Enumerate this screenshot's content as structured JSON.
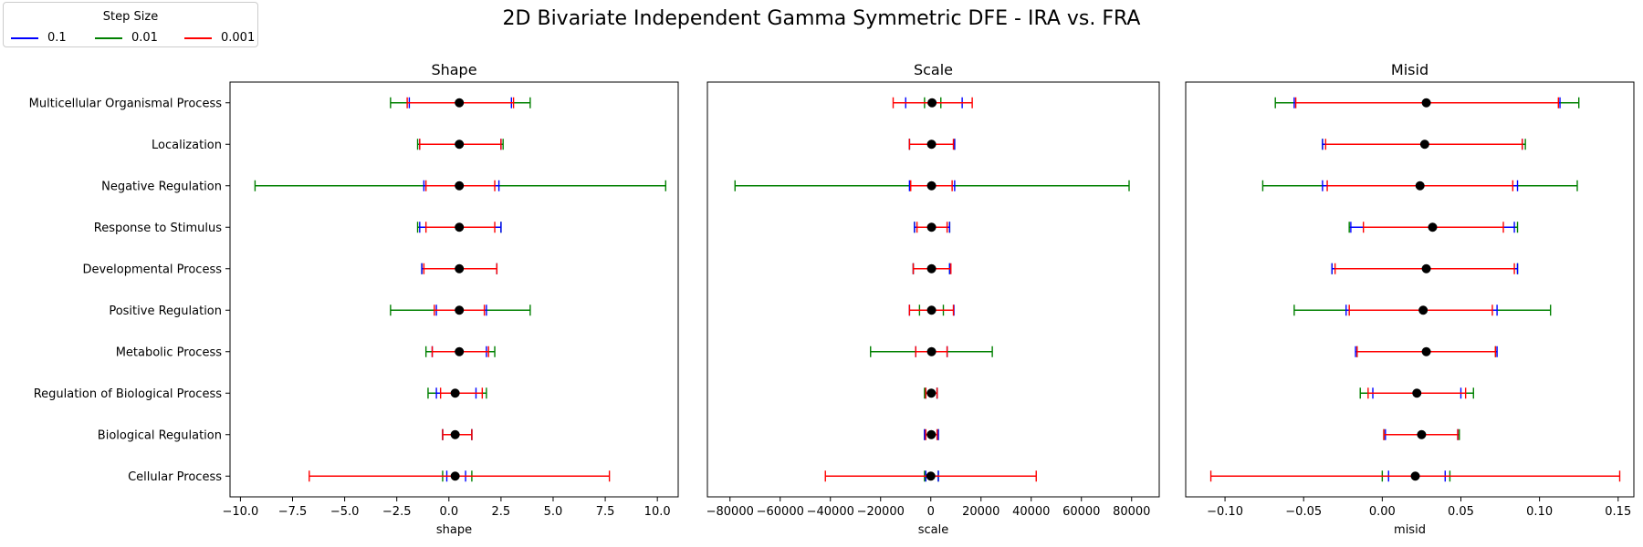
{
  "figure": {
    "suptitle": "2D Bivariate Independent Gamma Symmetric DFE - IRA vs. FRA"
  },
  "legend": {
    "title": "Step Size",
    "entries": [
      {
        "label": "0.1",
        "color": "#0000ff"
      },
      {
        "label": "0.01",
        "color": "#008000"
      },
      {
        "label": "0.001",
        "color": "#ff0000"
      }
    ]
  },
  "chart_data": [
    {
      "type": "errorbar",
      "title": "Shape",
      "xlabel": "shape",
      "xlim": [
        -10.5,
        11.0
      ],
      "xticks": [
        -10.0,
        -7.5,
        -5.0,
        -2.5,
        0.0,
        2.5,
        5.0,
        7.5,
        10.0
      ],
      "xtick_labels": [
        "−10.0",
        "−7.5",
        "−5.0",
        "−2.5",
        "0.0",
        "2.5",
        "5.0",
        "7.5",
        "10.0"
      ],
      "categories": [
        "Multicellular Organismal Process",
        "Localization",
        "Negative Regulation",
        "Response to Stimulus",
        "Developmental Process",
        "Positive Regulation",
        "Metabolic Process",
        "Regulation of Biological Process",
        "Biological Regulation",
        "Cellular Process"
      ],
      "points": [
        0.5,
        0.5,
        0.5,
        0.5,
        0.5,
        0.5,
        0.5,
        0.3,
        0.3,
        0.3
      ],
      "series": [
        {
          "name": "0.1",
          "color": "#0000ff",
          "intervals": [
            [
              -1.9,
              3.0
            ],
            [
              -1.4,
              2.5
            ],
            [
              -1.2,
              2.4
            ],
            [
              -1.4,
              2.5
            ],
            [
              -1.3,
              2.3
            ],
            [
              -0.6,
              1.8
            ],
            [
              -0.8,
              1.8
            ],
            [
              -0.6,
              1.3
            ],
            [
              -0.3,
              1.1
            ],
            [
              -0.1,
              0.8
            ]
          ]
        },
        {
          "name": "0.01",
          "color": "#008000",
          "intervals": [
            [
              -2.8,
              3.9
            ],
            [
              -1.5,
              2.6
            ],
            [
              -9.3,
              10.4
            ],
            [
              -1.5,
              2.5
            ],
            [
              -1.3,
              2.3
            ],
            [
              -2.8,
              3.9
            ],
            [
              -1.1,
              2.2
            ],
            [
              -1.0,
              1.8
            ],
            [
              -0.3,
              1.1
            ],
            [
              -0.3,
              1.1
            ]
          ]
        },
        {
          "name": "0.001",
          "color": "#ff0000",
          "intervals": [
            [
              -2.0,
              3.1
            ],
            [
              -1.4,
              2.5
            ],
            [
              -1.1,
              2.2
            ],
            [
              -1.1,
              2.2
            ],
            [
              -1.2,
              2.3
            ],
            [
              -0.7,
              1.7
            ],
            [
              -0.8,
              1.9
            ],
            [
              -0.4,
              1.6
            ],
            [
              -0.3,
              1.1
            ],
            [
              -6.7,
              7.7
            ]
          ]
        }
      ]
    },
    {
      "type": "errorbar",
      "title": "Scale",
      "xlabel": "scale",
      "xlim": [
        -89000,
        91000
      ],
      "xticks": [
        -80000,
        -60000,
        -40000,
        -20000,
        0,
        20000,
        40000,
        60000,
        80000
      ],
      "xtick_labels": [
        "−80000",
        "−60000",
        "−40000",
        "−20000",
        "0",
        "20000",
        "40000",
        "60000",
        "80000"
      ],
      "categories": [
        "Multicellular Organismal Process",
        "Localization",
        "Negative Regulation",
        "Response to Stimulus",
        "Developmental Process",
        "Positive Regulation",
        "Metabolic Process",
        "Regulation of Biological Process",
        "Biological Regulation",
        "Cellular Process"
      ],
      "points": [
        500,
        300,
        300,
        300,
        300,
        300,
        300,
        200,
        200,
        0
      ],
      "series": [
        {
          "name": "0.1",
          "color": "#0000ff",
          "intervals": [
            [
              -10000,
              12500
            ],
            [
              -8500,
              9500
            ],
            [
              -8500,
              9500
            ],
            [
              -6500,
              7500
            ],
            [
              -7000,
              7500
            ],
            [
              -8500,
              9200
            ],
            [
              -6000,
              6500
            ],
            [
              -2000,
              2500
            ],
            [
              -2500,
              3000
            ],
            [
              -2000,
              3000
            ]
          ]
        },
        {
          "name": "0.01",
          "color": "#008000",
          "intervals": [
            [
              -2500,
              4000
            ],
            [
              -8500,
              9500
            ],
            [
              -78000,
              79000
            ],
            [
              -6500,
              7500
            ],
            [
              -7000,
              7500
            ],
            [
              -4500,
              5000
            ],
            [
              -24000,
              24500
            ],
            [
              -2500,
              2500
            ],
            [
              -2500,
              3000
            ],
            [
              -2500,
              3000
            ]
          ]
        },
        {
          "name": "0.001",
          "color": "#ff0000",
          "intervals": [
            [
              -15000,
              16500
            ],
            [
              -8500,
              9000
            ],
            [
              -8000,
              8500
            ],
            [
              -5500,
              6500
            ],
            [
              -7000,
              8000
            ],
            [
              -8500,
              9000
            ],
            [
              -6000,
              6500
            ],
            [
              -2000,
              2500
            ],
            [
              -2000,
              2500
            ],
            [
              -42000,
              42000
            ]
          ]
        }
      ]
    },
    {
      "type": "errorbar",
      "title": "Misid",
      "xlabel": "misid",
      "xlim": [
        -0.125,
        0.16
      ],
      "xticks": [
        -0.1,
        -0.05,
        0.0,
        0.05,
        0.1,
        0.15
      ],
      "xtick_labels": [
        "−0.10",
        "−0.05",
        "0.00",
        "0.05",
        "0.10",
        "0.15"
      ],
      "categories": [
        "Multicellular Organismal Process",
        "Localization",
        "Negative Regulation",
        "Response to Stimulus",
        "Developmental Process",
        "Positive Regulation",
        "Metabolic Process",
        "Regulation of Biological Process",
        "Biological Regulation",
        "Cellular Process"
      ],
      "points": [
        0.028,
        0.027,
        0.024,
        0.032,
        0.028,
        0.026,
        0.028,
        0.022,
        0.025,
        0.021
      ],
      "series": [
        {
          "name": "0.1",
          "color": "#0000ff",
          "intervals": [
            [
              -0.056,
              0.113
            ],
            [
              -0.038,
              0.089
            ],
            [
              -0.038,
              0.086
            ],
            [
              -0.02,
              0.084
            ],
            [
              -0.032,
              0.086
            ],
            [
              -0.023,
              0.073
            ],
            [
              -0.017,
              0.073
            ],
            [
              -0.006,
              0.05
            ],
            [
              0.002,
              0.048
            ],
            [
              0.004,
              0.04
            ]
          ]
        },
        {
          "name": "0.01",
          "color": "#008000",
          "intervals": [
            [
              -0.068,
              0.125
            ],
            [
              -0.038,
              0.091
            ],
            [
              -0.076,
              0.124
            ],
            [
              -0.021,
              0.086
            ],
            [
              -0.032,
              0.086
            ],
            [
              -0.056,
              0.107
            ],
            [
              -0.016,
              0.072
            ],
            [
              -0.014,
              0.058
            ],
            [
              0.001,
              0.049
            ],
            [
              0.0,
              0.043
            ]
          ]
        },
        {
          "name": "0.001",
          "color": "#ff0000",
          "intervals": [
            [
              -0.055,
              0.112
            ],
            [
              -0.036,
              0.089
            ],
            [
              -0.035,
              0.083
            ],
            [
              -0.012,
              0.077
            ],
            [
              -0.03,
              0.084
            ],
            [
              -0.021,
              0.07
            ],
            [
              -0.016,
              0.072
            ],
            [
              -0.009,
              0.053
            ],
            [
              0.001,
              0.048
            ],
            [
              -0.109,
              0.151
            ]
          ]
        }
      ]
    }
  ]
}
